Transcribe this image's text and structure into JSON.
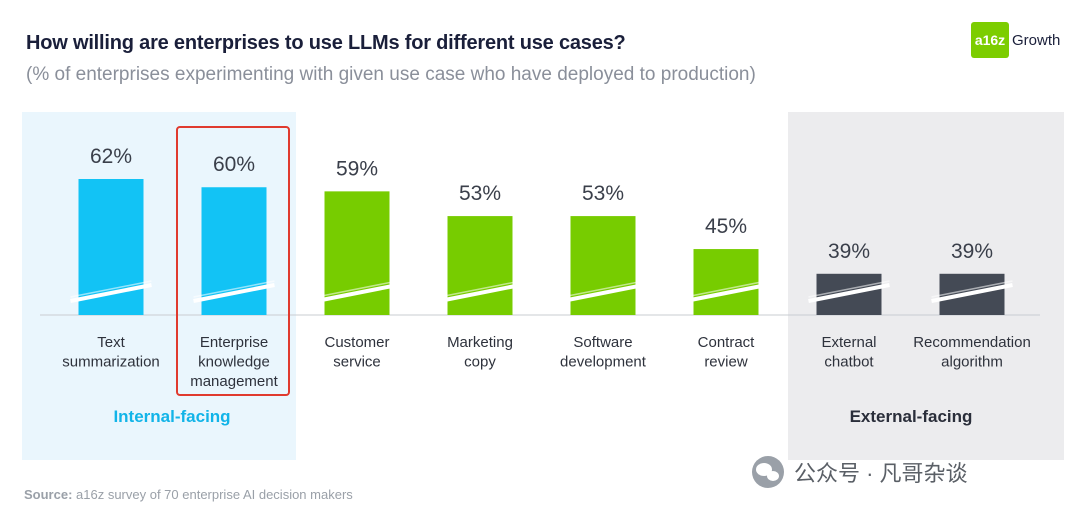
{
  "header": {
    "title": "How willing are enterprises to use LLMs for different use cases?",
    "subtitle": "(% of enterprises experimenting with given use case who have deployed to production)"
  },
  "logo": {
    "mark": "a16z",
    "text": "Growth"
  },
  "chart_data": {
    "type": "bar",
    "title": "How willing are enterprises to use LLMs for different use cases?",
    "categories": [
      [
        "Text",
        "summarization"
      ],
      [
        "Enterprise",
        "knowledge",
        "management"
      ],
      [
        "Customer",
        "service"
      ],
      [
        "Marketing",
        "copy"
      ],
      [
        "Software",
        "development"
      ],
      [
        "Contract",
        "review"
      ],
      [
        "External",
        "chatbot"
      ],
      [
        "Recommendation",
        "algorithm"
      ]
    ],
    "values": [
      62,
      60,
      59,
      53,
      53,
      45,
      39,
      39
    ],
    "value_labels": [
      "62%",
      "60%",
      "59%",
      "53%",
      "53%",
      "45%",
      "39%",
      "39%"
    ],
    "groups": [
      "internal",
      "internal",
      "neutral",
      "neutral",
      "neutral",
      "neutral",
      "external",
      "external"
    ],
    "colors": {
      "internal": "#12c3f5",
      "neutral": "#77cc00",
      "external": "#444a55"
    },
    "axis_broken": true,
    "highlighted_category": "Enterprise knowledge management"
  },
  "groups": {
    "internal_label": "Internal-facing",
    "external_label": "External-facing"
  },
  "footer": {
    "source_label": "Source:",
    "source_text": " a16z survey of 70 enterprise AI decision makers"
  },
  "watermark": {
    "text": "公众号 · 凡哥杂谈"
  }
}
